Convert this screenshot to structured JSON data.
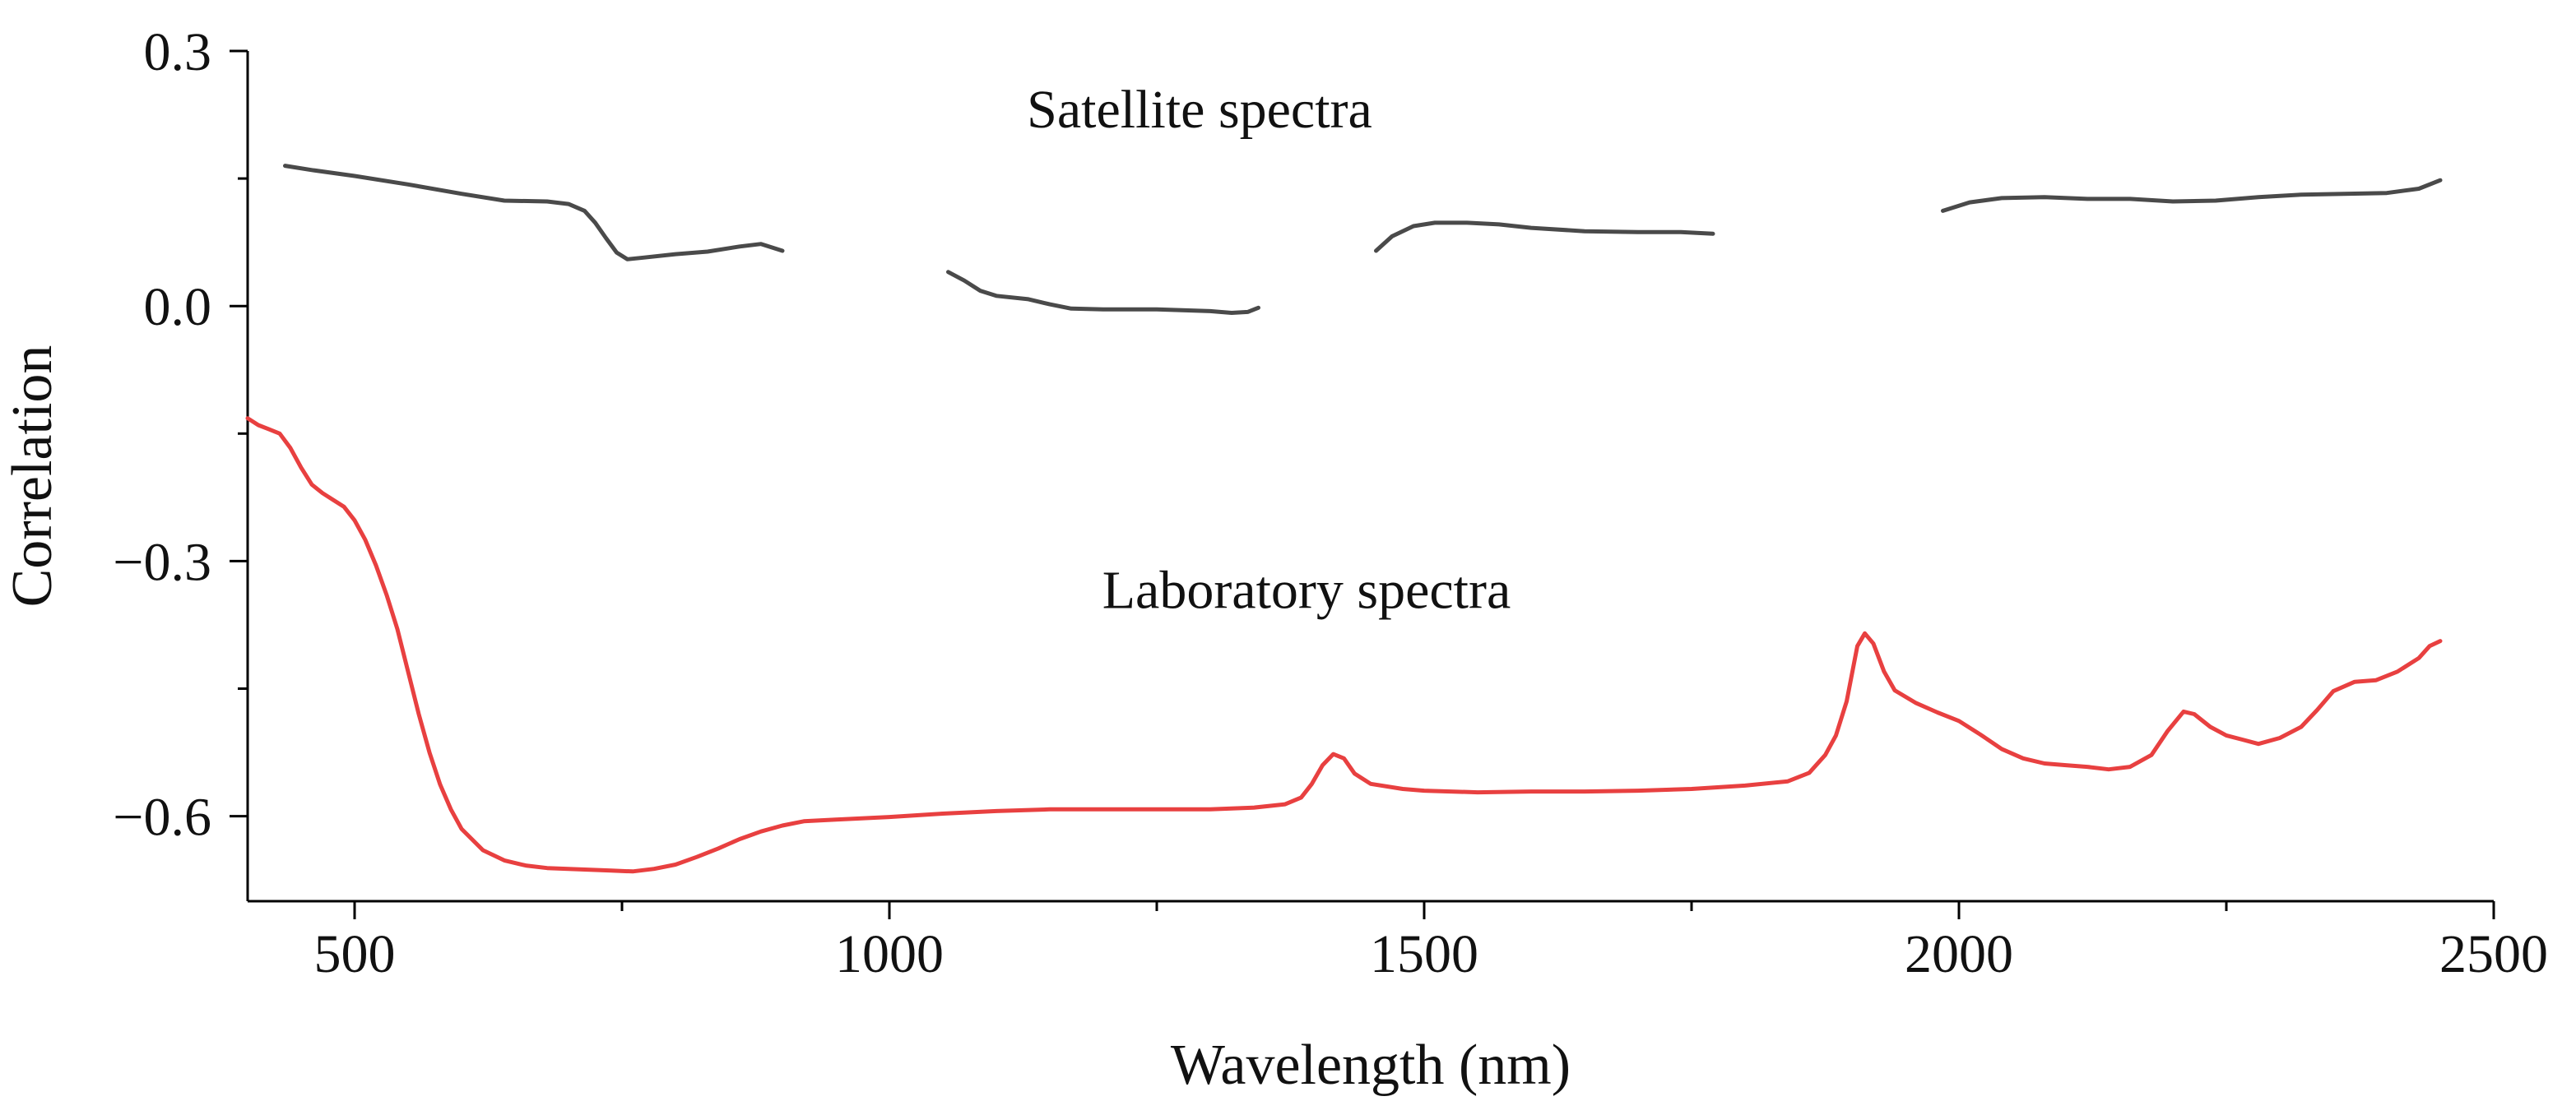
{
  "chart_data": {
    "type": "line",
    "title": "",
    "xlabel": "Wavelength (nm)",
    "ylabel": "Correlation",
    "xlim": [
      400,
      2500
    ],
    "ylim": [
      -0.7,
      0.3
    ],
    "grid": false,
    "x_ticks": [
      500,
      1000,
      1500,
      2000,
      2500
    ],
    "x_tick_labels": [
      "500",
      "1000",
      "1500",
      "2000",
      "2500"
    ],
    "x_minor_ticks": [
      750,
      1250,
      1750,
      2250
    ],
    "y_ticks": [
      0.3,
      0.0,
      -0.3,
      -0.6
    ],
    "y_tick_labels": [
      "0.3",
      "0.0",
      "−0.3",
      "−0.6"
    ],
    "y_minor_ticks": [
      0.15,
      -0.15,
      -0.45
    ],
    "annotations": [
      {
        "text": "Satellite spectra",
        "x": 1290,
        "y": 0.21
      },
      {
        "text": "Laboratory spectra",
        "x": 1390,
        "y": -0.355
      }
    ],
    "series": [
      {
        "name": "Satellite spectra",
        "color": "#4a4a4a",
        "segments": [
          [
            [
              435,
              0.165
            ],
            [
              460,
              0.16
            ],
            [
              500,
              0.153
            ],
            [
              550,
              0.143
            ],
            [
              600,
              0.132
            ],
            [
              640,
              0.124
            ],
            [
              680,
              0.123
            ],
            [
              700,
              0.12
            ],
            [
              715,
              0.112
            ],
            [
              725,
              0.098
            ],
            [
              735,
              0.08
            ],
            [
              745,
              0.063
            ],
            [
              755,
              0.055
            ],
            [
              770,
              0.057
            ],
            [
              800,
              0.061
            ],
            [
              830,
              0.064
            ],
            [
              860,
              0.07
            ],
            [
              880,
              0.073
            ],
            [
              900,
              0.065
            ]
          ],
          [
            [
              1055,
              0.04
            ],
            [
              1070,
              0.03
            ],
            [
              1085,
              0.018
            ],
            [
              1100,
              0.012
            ],
            [
              1130,
              0.008
            ],
            [
              1150,
              0.002
            ],
            [
              1170,
              -0.003
            ],
            [
              1200,
              -0.004
            ],
            [
              1250,
              -0.004
            ],
            [
              1300,
              -0.006
            ],
            [
              1320,
              -0.008
            ],
            [
              1335,
              -0.007
            ],
            [
              1345,
              -0.002
            ]
          ],
          [
            [
              1455,
              0.065
            ],
            [
              1470,
              0.082
            ],
            [
              1490,
              0.094
            ],
            [
              1510,
              0.098
            ],
            [
              1540,
              0.098
            ],
            [
              1570,
              0.096
            ],
            [
              1600,
              0.092
            ],
            [
              1650,
              0.088
            ],
            [
              1700,
              0.087
            ],
            [
              1740,
              0.087
            ],
            [
              1770,
              0.085
            ]
          ],
          [
            [
              1985,
              0.112
            ],
            [
              2010,
              0.122
            ],
            [
              2040,
              0.127
            ],
            [
              2080,
              0.128
            ],
            [
              2120,
              0.126
            ],
            [
              2160,
              0.126
            ],
            [
              2200,
              0.123
            ],
            [
              2240,
              0.124
            ],
            [
              2280,
              0.128
            ],
            [
              2320,
              0.131
            ],
            [
              2360,
              0.132
            ],
            [
              2400,
              0.133
            ],
            [
              2430,
              0.138
            ],
            [
              2450,
              0.148
            ]
          ]
        ]
      },
      {
        "name": "Laboratory spectra",
        "color": "#e84040",
        "segments": [
          [
            [
              400,
              -0.132
            ],
            [
              410,
              -0.14
            ],
            [
              420,
              -0.145
            ],
            [
              430,
              -0.15
            ],
            [
              440,
              -0.167
            ],
            [
              450,
              -0.19
            ],
            [
              460,
              -0.21
            ],
            [
              470,
              -0.22
            ],
            [
              480,
              -0.228
            ],
            [
              490,
              -0.236
            ],
            [
              500,
              -0.252
            ],
            [
              510,
              -0.275
            ],
            [
              520,
              -0.305
            ],
            [
              530,
              -0.34
            ],
            [
              540,
              -0.38
            ],
            [
              550,
              -0.43
            ],
            [
              560,
              -0.48
            ],
            [
              570,
              -0.525
            ],
            [
              580,
              -0.563
            ],
            [
              590,
              -0.592
            ],
            [
              600,
              -0.615
            ],
            [
              620,
              -0.64
            ],
            [
              640,
              -0.652
            ],
            [
              660,
              -0.658
            ],
            [
              680,
              -0.661
            ],
            [
              700,
              -0.662
            ],
            [
              720,
              -0.663
            ],
            [
              740,
              -0.664
            ],
            [
              760,
              -0.665
            ],
            [
              780,
              -0.662
            ],
            [
              800,
              -0.657
            ],
            [
              820,
              -0.648
            ],
            [
              840,
              -0.638
            ],
            [
              860,
              -0.627
            ],
            [
              880,
              -0.618
            ],
            [
              900,
              -0.611
            ],
            [
              920,
              -0.606
            ],
            [
              950,
              -0.604
            ],
            [
              1000,
              -0.601
            ],
            [
              1050,
              -0.597
            ],
            [
              1100,
              -0.594
            ],
            [
              1150,
              -0.592
            ],
            [
              1200,
              -0.592
            ],
            [
              1250,
              -0.592
            ],
            [
              1300,
              -0.592
            ],
            [
              1340,
              -0.59
            ],
            [
              1370,
              -0.586
            ],
            [
              1385,
              -0.578
            ],
            [
              1395,
              -0.562
            ],
            [
              1405,
              -0.54
            ],
            [
              1415,
              -0.527
            ],
            [
              1425,
              -0.532
            ],
            [
              1435,
              -0.55
            ],
            [
              1450,
              -0.562
            ],
            [
              1480,
              -0.568
            ],
            [
              1500,
              -0.57
            ],
            [
              1550,
              -0.572
            ],
            [
              1600,
              -0.571
            ],
            [
              1650,
              -0.571
            ],
            [
              1700,
              -0.57
            ],
            [
              1750,
              -0.568
            ],
            [
              1800,
              -0.564
            ],
            [
              1840,
              -0.559
            ],
            [
              1860,
              -0.549
            ],
            [
              1875,
              -0.528
            ],
            [
              1885,
              -0.505
            ],
            [
              1895,
              -0.465
            ],
            [
              1905,
              -0.4
            ],
            [
              1912,
              -0.385
            ],
            [
              1920,
              -0.397
            ],
            [
              1930,
              -0.43
            ],
            [
              1940,
              -0.452
            ],
            [
              1960,
              -0.467
            ],
            [
              1980,
              -0.478
            ],
            [
              2000,
              -0.488
            ],
            [
              2020,
              -0.504
            ],
            [
              2040,
              -0.521
            ],
            [
              2060,
              -0.532
            ],
            [
              2080,
              -0.538
            ],
            [
              2100,
              -0.54
            ],
            [
              2120,
              -0.542
            ],
            [
              2140,
              -0.545
            ],
            [
              2160,
              -0.542
            ],
            [
              2180,
              -0.528
            ],
            [
              2195,
              -0.5
            ],
            [
              2210,
              -0.477
            ],
            [
              2220,
              -0.48
            ],
            [
              2235,
              -0.495
            ],
            [
              2250,
              -0.505
            ],
            [
              2265,
              -0.51
            ],
            [
              2280,
              -0.515
            ],
            [
              2300,
              -0.508
            ],
            [
              2320,
              -0.495
            ],
            [
              2335,
              -0.475
            ],
            [
              2350,
              -0.453
            ],
            [
              2370,
              -0.442
            ],
            [
              2390,
              -0.44
            ],
            [
              2410,
              -0.43
            ],
            [
              2430,
              -0.414
            ],
            [
              2440,
              -0.4
            ],
            [
              2450,
              -0.394
            ]
          ]
        ]
      }
    ]
  }
}
